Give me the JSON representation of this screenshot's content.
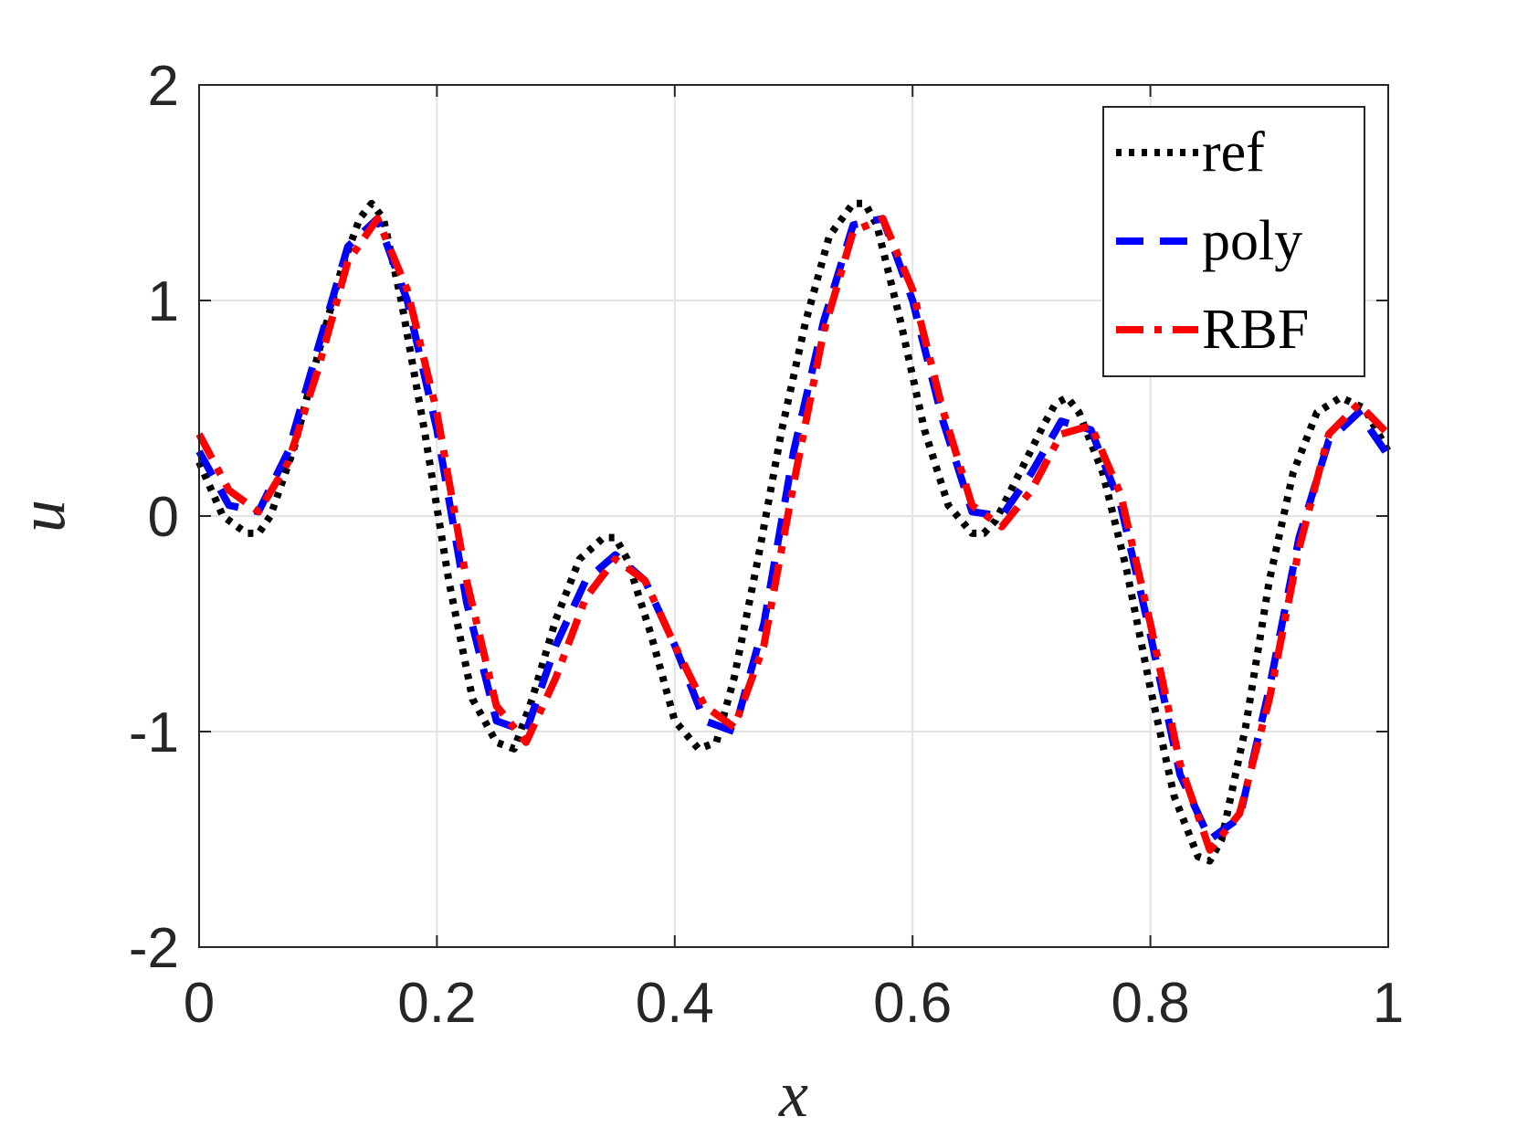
{
  "chart_data": {
    "type": "line",
    "title": "",
    "xlabel": "x",
    "ylabel": "u",
    "xlim": [
      0,
      1
    ],
    "ylim": [
      -2,
      2
    ],
    "xticks": [
      0,
      0.2,
      0.4,
      0.6,
      0.8,
      1
    ],
    "xtick_labels": [
      "0",
      "0.2",
      "0.4",
      "0.6",
      "0.8",
      "1"
    ],
    "yticks": [
      -2,
      -1,
      0,
      1,
      2
    ],
    "ytick_labels": [
      "-2",
      "-1",
      "0",
      "1",
      "2"
    ],
    "grid": true,
    "legend_position": "top-right",
    "series": [
      {
        "name": "ref",
        "color": "#000000",
        "style": "dotted",
        "x": [
          0,
          0.02,
          0.04,
          0.05,
          0.06,
          0.08,
          0.1,
          0.12,
          0.135,
          0.145,
          0.155,
          0.17,
          0.19,
          0.21,
          0.23,
          0.25,
          0.265,
          0.28,
          0.3,
          0.32,
          0.34,
          0.35,
          0.36,
          0.38,
          0.4,
          0.42,
          0.435,
          0.45,
          0.47,
          0.49,
          0.51,
          0.53,
          0.55,
          0.56,
          0.57,
          0.59,
          0.61,
          0.63,
          0.65,
          0.66,
          0.67,
          0.69,
          0.71,
          0.72,
          0.73,
          0.74,
          0.76,
          0.78,
          0.8,
          0.82,
          0.84,
          0.85,
          0.86,
          0.88,
          0.9,
          0.92,
          0.94,
          0.96,
          0.98,
          1.0
        ],
        "values": [
          0.25,
          0.0,
          -0.08,
          -0.08,
          0.0,
          0.32,
          0.75,
          1.15,
          1.38,
          1.45,
          1.38,
          1.0,
          0.38,
          -0.3,
          -0.85,
          -1.05,
          -1.08,
          -0.85,
          -0.48,
          -0.2,
          -0.1,
          -0.1,
          -0.2,
          -0.55,
          -0.95,
          -1.08,
          -1.05,
          -0.75,
          -0.2,
          0.4,
          0.9,
          1.3,
          1.45,
          1.45,
          1.35,
          0.9,
          0.4,
          0.05,
          -0.08,
          -0.08,
          -0.02,
          0.2,
          0.42,
          0.52,
          0.55,
          0.48,
          0.2,
          -0.25,
          -0.8,
          -1.3,
          -1.58,
          -1.6,
          -1.5,
          -0.98,
          -0.3,
          0.2,
          0.48,
          0.55,
          0.5,
          0.3
        ]
      },
      {
        "name": "poly",
        "color": "#0000ff",
        "style": "dashed",
        "x": [
          0,
          0.025,
          0.05,
          0.075,
          0.1,
          0.125,
          0.15,
          0.175,
          0.2,
          0.225,
          0.25,
          0.275,
          0.3,
          0.325,
          0.35,
          0.375,
          0.4,
          0.425,
          0.45,
          0.475,
          0.5,
          0.525,
          0.55,
          0.575,
          0.6,
          0.625,
          0.65,
          0.675,
          0.7,
          0.725,
          0.75,
          0.775,
          0.8,
          0.825,
          0.85,
          0.875,
          0.9,
          0.925,
          0.95,
          0.975,
          1.0
        ],
        "values": [
          0.3,
          0.05,
          0.02,
          0.3,
          0.78,
          1.25,
          1.38,
          1.0,
          0.4,
          -0.4,
          -0.95,
          -1.0,
          -0.6,
          -0.3,
          -0.18,
          -0.3,
          -0.6,
          -0.95,
          -1.0,
          -0.5,
          0.3,
          0.9,
          1.35,
          1.38,
          1.0,
          0.45,
          0.02,
          0.0,
          0.2,
          0.44,
          0.4,
          0.05,
          -0.55,
          -1.2,
          -1.5,
          -1.4,
          -0.8,
          -0.1,
          0.35,
          0.48,
          0.28
        ]
      },
      {
        "name": "RBF",
        "color": "#ff0000",
        "style": "dashdot",
        "x": [
          0,
          0.025,
          0.05,
          0.075,
          0.1,
          0.125,
          0.15,
          0.175,
          0.2,
          0.225,
          0.25,
          0.275,
          0.3,
          0.325,
          0.35,
          0.375,
          0.4,
          0.425,
          0.45,
          0.475,
          0.5,
          0.525,
          0.55,
          0.575,
          0.6,
          0.625,
          0.65,
          0.675,
          0.7,
          0.725,
          0.75,
          0.775,
          0.8,
          0.825,
          0.85,
          0.875,
          0.9,
          0.925,
          0.95,
          0.975,
          1.0
        ],
        "values": [
          0.38,
          0.12,
          0.02,
          0.25,
          0.68,
          1.18,
          1.38,
          1.05,
          0.48,
          -0.3,
          -0.88,
          -1.05,
          -0.75,
          -0.38,
          -0.2,
          -0.3,
          -0.6,
          -0.88,
          -0.98,
          -0.6,
          0.15,
          0.85,
          1.32,
          1.38,
          1.05,
          0.5,
          0.05,
          -0.05,
          0.12,
          0.38,
          0.42,
          0.1,
          -0.5,
          -1.15,
          -1.55,
          -1.38,
          -0.85,
          -0.15,
          0.38,
          0.52,
          0.38
        ]
      }
    ]
  }
}
